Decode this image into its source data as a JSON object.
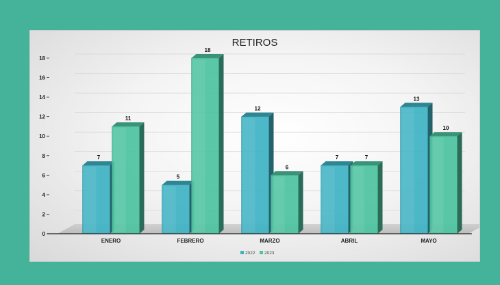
{
  "chart_data": {
    "type": "bar",
    "title": "RETIROS",
    "xlabel": "",
    "ylabel": "",
    "categories": [
      "ENERO",
      "FEBRERO",
      "MARZO",
      "ABRIL",
      "MAYO"
    ],
    "series": [
      {
        "name": "2022",
        "values": [
          7,
          5,
          12,
          7,
          13
        ],
        "color": "#3fb3c4"
      },
      {
        "name": "2023",
        "values": [
          11,
          18,
          6,
          7,
          10
        ],
        "color": "#4dc4a0"
      }
    ],
    "ylim": [
      0,
      18
    ],
    "yticks": [
      0,
      2,
      4,
      6,
      8,
      10,
      12,
      14,
      16,
      18
    ],
    "grid": true,
    "legend_position": "bottom",
    "three_d": true
  }
}
